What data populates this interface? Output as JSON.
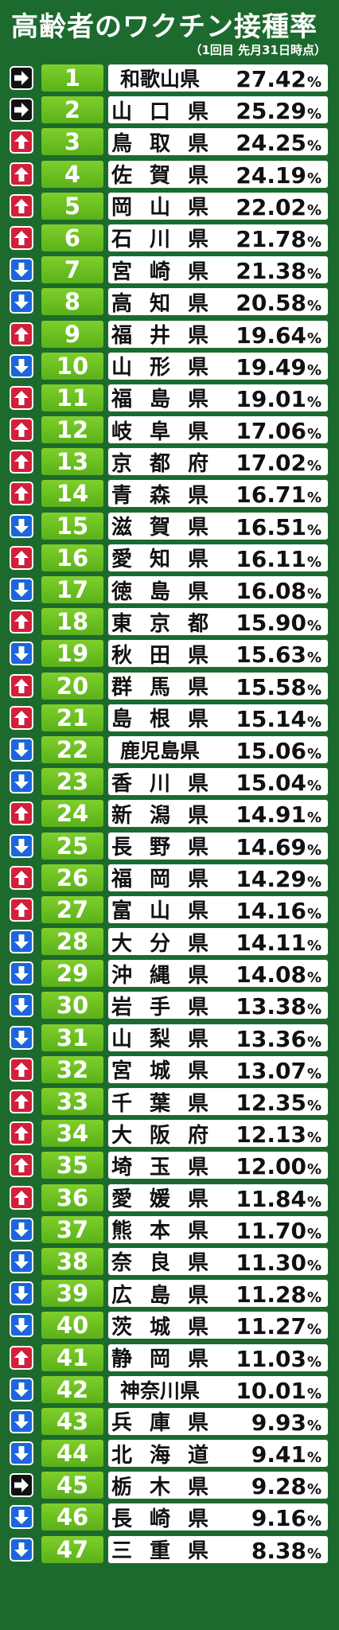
{
  "header": {
    "title": "高齢者のワクチン接種率",
    "subtitle": "（1回目 先月31日時点）"
  },
  "unit": "%",
  "rows": [
    {
      "rank": "1",
      "pref": "和歌山県",
      "value": "27.42",
      "trend": "same"
    },
    {
      "rank": "2",
      "pref": "山口県",
      "value": "25.29",
      "trend": "same"
    },
    {
      "rank": "3",
      "pref": "鳥取県",
      "value": "24.25",
      "trend": "up"
    },
    {
      "rank": "4",
      "pref": "佐賀県",
      "value": "24.19",
      "trend": "up"
    },
    {
      "rank": "5",
      "pref": "岡山県",
      "value": "22.02",
      "trend": "up"
    },
    {
      "rank": "6",
      "pref": "石川県",
      "value": "21.78",
      "trend": "up"
    },
    {
      "rank": "7",
      "pref": "宮崎県",
      "value": "21.38",
      "trend": "down"
    },
    {
      "rank": "8",
      "pref": "高知県",
      "value": "20.58",
      "trend": "down"
    },
    {
      "rank": "9",
      "pref": "福井県",
      "value": "19.64",
      "trend": "up"
    },
    {
      "rank": "10",
      "pref": "山形県",
      "value": "19.49",
      "trend": "down"
    },
    {
      "rank": "11",
      "pref": "福島県",
      "value": "19.01",
      "trend": "up"
    },
    {
      "rank": "12",
      "pref": "岐阜県",
      "value": "17.06",
      "trend": "up"
    },
    {
      "rank": "13",
      "pref": "京都府",
      "value": "17.02",
      "trend": "up"
    },
    {
      "rank": "14",
      "pref": "青森県",
      "value": "16.71",
      "trend": "up"
    },
    {
      "rank": "15",
      "pref": "滋賀県",
      "value": "16.51",
      "trend": "down"
    },
    {
      "rank": "16",
      "pref": "愛知県",
      "value": "16.11",
      "trend": "up"
    },
    {
      "rank": "17",
      "pref": "徳島県",
      "value": "16.08",
      "trend": "down"
    },
    {
      "rank": "18",
      "pref": "東京都",
      "value": "15.90",
      "trend": "up"
    },
    {
      "rank": "19",
      "pref": "秋田県",
      "value": "15.63",
      "trend": "down"
    },
    {
      "rank": "20",
      "pref": "群馬県",
      "value": "15.58",
      "trend": "up"
    },
    {
      "rank": "21",
      "pref": "島根県",
      "value": "15.14",
      "trend": "up"
    },
    {
      "rank": "22",
      "pref": "鹿児島県",
      "value": "15.06",
      "trend": "down"
    },
    {
      "rank": "23",
      "pref": "香川県",
      "value": "15.04",
      "trend": "down"
    },
    {
      "rank": "24",
      "pref": "新潟県",
      "value": "14.91",
      "trend": "up"
    },
    {
      "rank": "25",
      "pref": "長野県",
      "value": "14.69",
      "trend": "down"
    },
    {
      "rank": "26",
      "pref": "福岡県",
      "value": "14.29",
      "trend": "up"
    },
    {
      "rank": "27",
      "pref": "富山県",
      "value": "14.16",
      "trend": "up"
    },
    {
      "rank": "28",
      "pref": "大分県",
      "value": "14.11",
      "trend": "down"
    },
    {
      "rank": "29",
      "pref": "沖縄県",
      "value": "14.08",
      "trend": "down"
    },
    {
      "rank": "30",
      "pref": "岩手県",
      "value": "13.38",
      "trend": "down"
    },
    {
      "rank": "31",
      "pref": "山梨県",
      "value": "13.36",
      "trend": "down"
    },
    {
      "rank": "32",
      "pref": "宮城県",
      "value": "13.07",
      "trend": "up"
    },
    {
      "rank": "33",
      "pref": "千葉県",
      "value": "12.35",
      "trend": "up"
    },
    {
      "rank": "34",
      "pref": "大阪府",
      "value": "12.13",
      "trend": "up"
    },
    {
      "rank": "35",
      "pref": "埼玉県",
      "value": "12.00",
      "trend": "up"
    },
    {
      "rank": "36",
      "pref": "愛媛県",
      "value": "11.84",
      "trend": "up"
    },
    {
      "rank": "37",
      "pref": "熊本県",
      "value": "11.70",
      "trend": "down"
    },
    {
      "rank": "38",
      "pref": "奈良県",
      "value": "11.30",
      "trend": "down"
    },
    {
      "rank": "39",
      "pref": "広島県",
      "value": "11.28",
      "trend": "down"
    },
    {
      "rank": "40",
      "pref": "茨城県",
      "value": "11.27",
      "trend": "down"
    },
    {
      "rank": "41",
      "pref": "静岡県",
      "value": "11.03",
      "trend": "up"
    },
    {
      "rank": "42",
      "pref": "神奈川県",
      "value": "10.01",
      "trend": "down"
    },
    {
      "rank": "43",
      "pref": "兵庫県",
      "value": "9.93",
      "trend": "down"
    },
    {
      "rank": "44",
      "pref": "北海道",
      "value": "9.41",
      "trend": "down"
    },
    {
      "rank": "45",
      "pref": "栃木県",
      "value": "9.28",
      "trend": "same"
    },
    {
      "rank": "46",
      "pref": "長崎県",
      "value": "9.16",
      "trend": "down"
    },
    {
      "rank": "47",
      "pref": "三重県",
      "value": "8.38",
      "trend": "down"
    }
  ],
  "colors": {
    "background": "#1d6a2f",
    "rank_box": "#6cc021",
    "up": "#d2203a",
    "down": "#1c66d9",
    "same": "#111111"
  },
  "icons": {
    "up": "arrow-up-icon",
    "down": "arrow-down-icon",
    "same": "arrow-right-icon"
  }
}
